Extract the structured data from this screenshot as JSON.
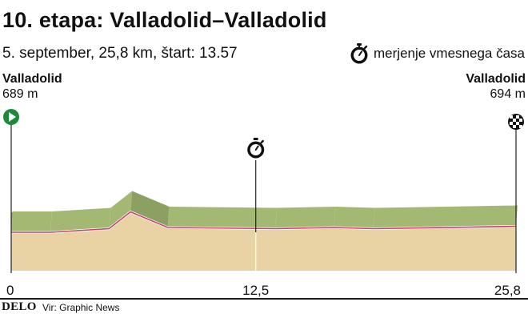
{
  "header": {
    "title": "10. etapa: Valladolid–Valladolid",
    "subtitle": "5. september, 25,8 km, štart: 13.57"
  },
  "legend": {
    "icon": "stopwatch-icon",
    "label": "merjenje vmesnega časa"
  },
  "places": {
    "start": {
      "name": "Valladolid",
      "altitude": "689 m",
      "icon": "play-icon"
    },
    "finish": {
      "name": "Valladolid",
      "altitude": "694 m",
      "icon": "checkered-flag-icon"
    }
  },
  "chart_data": {
    "type": "area",
    "x_ticks": [
      "0",
      "12,5",
      "25,8"
    ],
    "x_tick_values": [
      0,
      12.5,
      25.8
    ],
    "xlim": [
      0,
      25.8
    ],
    "intermediate_time_check_km": 12.5,
    "profile": [
      [
        0,
        689
      ],
      [
        2,
        689
      ],
      [
        5,
        692
      ],
      [
        6.1,
        706
      ],
      [
        8,
        693
      ],
      [
        13.5,
        692
      ],
      [
        16.5,
        693
      ],
      [
        18.5,
        692
      ],
      [
        25.8,
        694
      ]
    ],
    "colors": {
      "land": "#e9d3a5",
      "surface_top": "#a3b973",
      "surface_side": "#8ca064",
      "route": "#c2436e",
      "axis": "#222222"
    }
  },
  "footer": {
    "brand": "DELO",
    "source": "Vir: Graphic News"
  }
}
